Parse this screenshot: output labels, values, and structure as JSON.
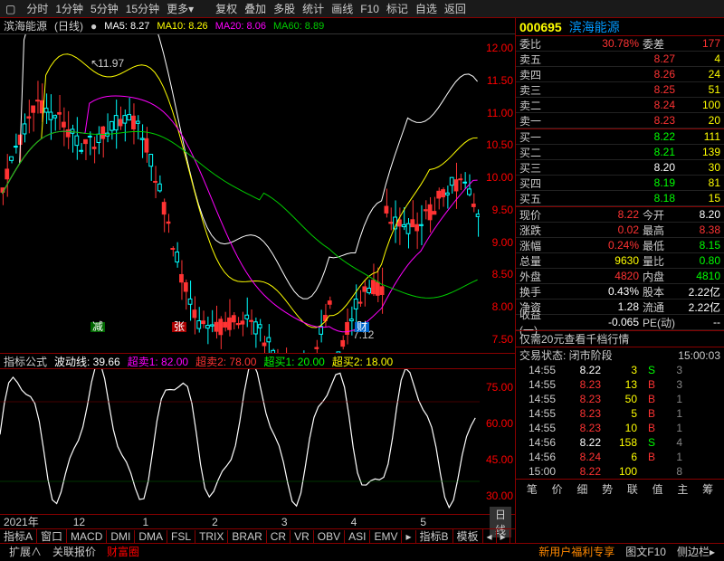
{
  "toolbar": {
    "items": [
      "分时",
      "1分钟",
      "5分钟",
      "15分钟",
      "更多▾"
    ],
    "items2": [
      "复权",
      "叠加",
      "多股",
      "统计",
      "画线",
      "F10",
      "标记",
      "自选",
      "返回"
    ]
  },
  "stock": {
    "code": "000695",
    "name": "滨海能源",
    "period": "日线"
  },
  "ma": {
    "ma5": "MA5: 8.27",
    "ma10": "MA10: 8.26",
    "ma20": "MA20: 8.06",
    "ma60": "MA60: 8.89"
  },
  "high_label": "11.97",
  "low_label": "7.12",
  "yaxis": [
    "12.00",
    "11.50",
    "11.00",
    "10.50",
    "10.00",
    "9.50",
    "9.00",
    "8.50",
    "8.00",
    "7.50"
  ],
  "indicator": {
    "name": "指标公式",
    "sub": "波动线: 39.66",
    "cs1": "超卖1: 82.00",
    "cs2": "超卖2: 78.00",
    "cm1": "超买1: 20.00",
    "cm2": "超买2: 18.00"
  },
  "sub_yaxis": [
    "75.00",
    "60.00",
    "45.00",
    "30.00"
  ],
  "time_ticks": [
    "2021年",
    "12",
    "1",
    "2",
    "3",
    "4",
    "5"
  ],
  "kline_label": "日线",
  "bottom_tabs": [
    "指标A",
    "窗口",
    "MACD",
    "DMI",
    "DMA",
    "FSL",
    "TRIX",
    "BRAR",
    "CR",
    "VR",
    "OBV",
    "ASI",
    "EMV",
    "▸",
    "指标B",
    "模板",
    "◂",
    "▸"
  ],
  "status": {
    "left": [
      "扩展∧",
      "关联报价",
      "财富圈"
    ],
    "right": [
      "新用户福利专享",
      "图文F10",
      "侧边栏▸"
    ]
  },
  "quote": {
    "委比": "30.78%",
    "委差": "177",
    "asks": [
      [
        "卖五",
        "8.27",
        "4"
      ],
      [
        "卖四",
        "8.26",
        "24"
      ],
      [
        "卖三",
        "8.25",
        "51"
      ],
      [
        "卖二",
        "8.24",
        "100"
      ],
      [
        "卖一",
        "8.23",
        "20"
      ]
    ],
    "bids": [
      [
        "买一",
        "8.22",
        "111"
      ],
      [
        "买二",
        "8.21",
        "139"
      ],
      [
        "买三",
        "8.20",
        "30"
      ],
      [
        "买四",
        "8.19",
        "81"
      ],
      [
        "买五",
        "8.18",
        "15"
      ]
    ],
    "details": [
      [
        "现价",
        "8.22",
        "red",
        "今开",
        "8.20",
        "white"
      ],
      [
        "涨跌",
        "0.02",
        "red",
        "最高",
        "8.38",
        "red"
      ],
      [
        "涨幅",
        "0.24%",
        "red",
        "最低",
        "8.15",
        "green"
      ],
      [
        "总量",
        "9630",
        "yellow",
        "量比",
        "0.80",
        "green"
      ],
      [
        "外盘",
        "4820",
        "red",
        "内盘",
        "4810",
        "green"
      ],
      [
        "换手",
        "0.43%",
        "white",
        "股本",
        "2.22亿",
        "white"
      ],
      [
        "净资",
        "1.28",
        "white",
        "流通",
        "2.22亿",
        "white"
      ],
      [
        "收益(一)",
        "-0.065",
        "white",
        "PE(动)",
        "--",
        "white"
      ]
    ],
    "promo": "仅需20元查看千档行情",
    "trade_status": "交易状态: 闭市阶段",
    "trade_time": "15:00:03",
    "ticks": [
      [
        "14:55",
        "8.22",
        "3",
        "S",
        "3",
        "green",
        "green"
      ],
      [
        "14:55",
        "8.23",
        "13",
        "B",
        "3",
        "red",
        "red"
      ],
      [
        "14:55",
        "8.23",
        "50",
        "B",
        "1",
        "red",
        "red"
      ],
      [
        "14:55",
        "8.23",
        "5",
        "B",
        "1",
        "red",
        "red"
      ],
      [
        "14:55",
        "8.23",
        "10",
        "B",
        "1",
        "red",
        "red"
      ],
      [
        "14:56",
        "8.22",
        "158",
        "S",
        "4",
        "green",
        "green"
      ],
      [
        "14:56",
        "8.24",
        "6",
        "B",
        "1",
        "red",
        "red"
      ],
      [
        "15:00",
        "8.22",
        "100",
        "",
        "8",
        "yellow",
        "white"
      ]
    ]
  },
  "footer_right": [
    "笔",
    "价",
    "细",
    "势",
    "联",
    "值",
    "主",
    "筹"
  ]
}
